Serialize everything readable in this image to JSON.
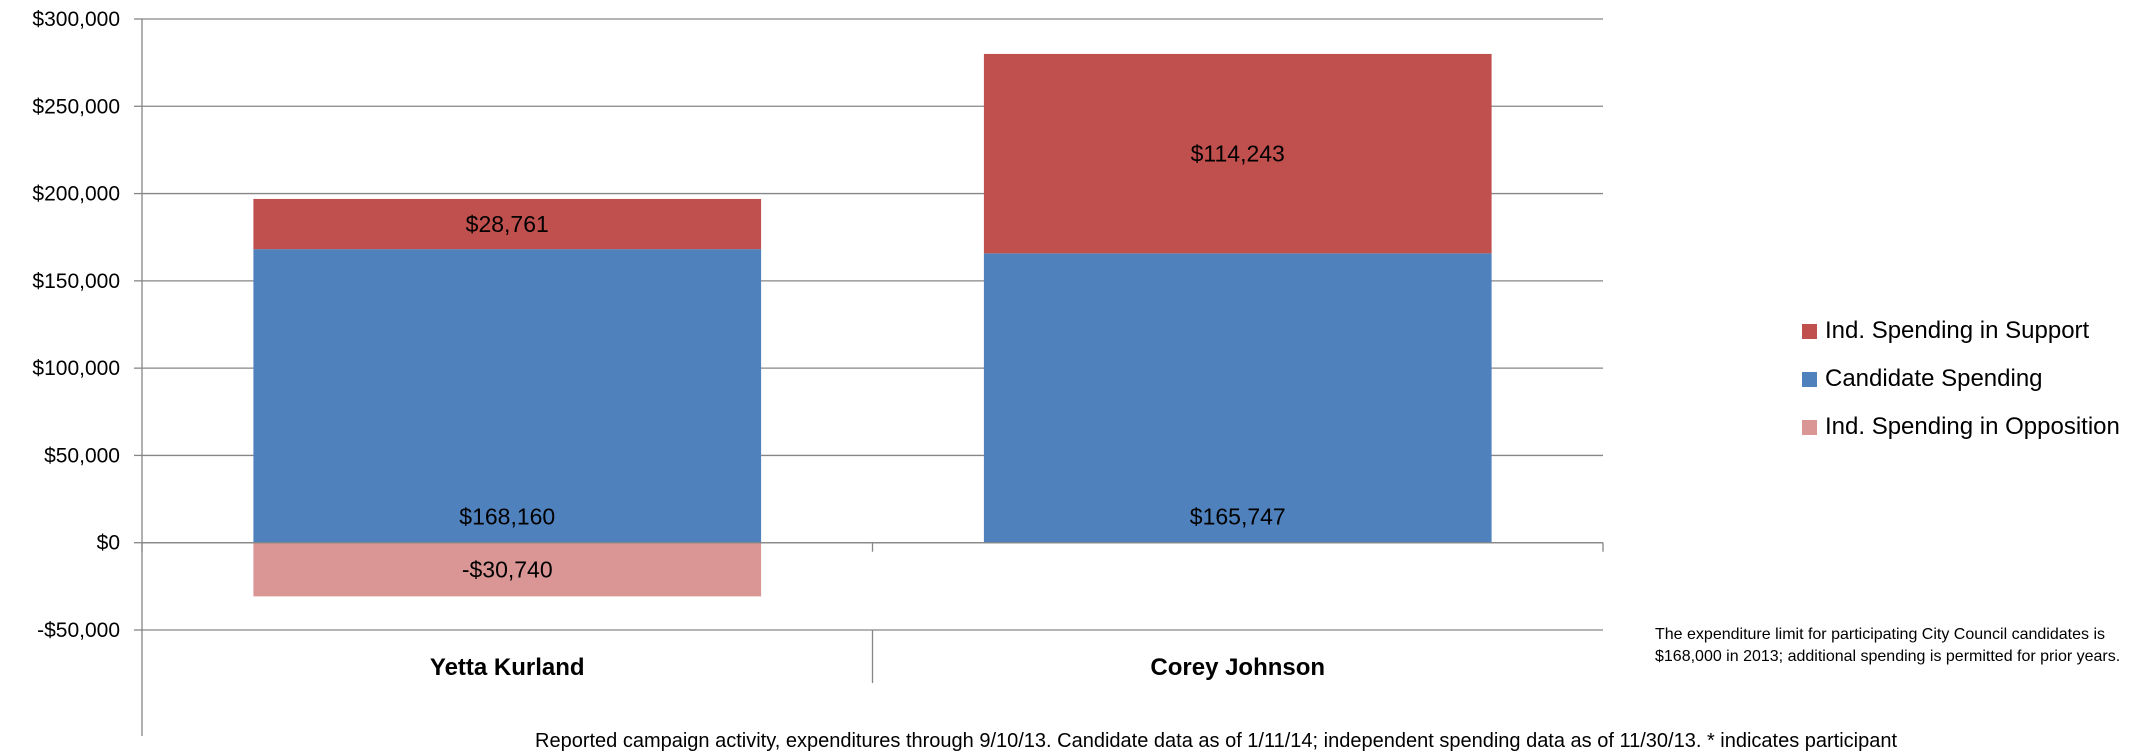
{
  "chart_data": {
    "type": "bar",
    "stacked": true,
    "categories": [
      "Yetta Kurland",
      "Corey Johnson"
    ],
    "series": [
      {
        "name": "Candidate Spending",
        "values": [
          168160,
          165747
        ],
        "labels": [
          "$168,160",
          "$165,747"
        ],
        "color": "#4F81BD"
      },
      {
        "name": "Ind. Spending in Support",
        "values": [
          28761,
          114243
        ],
        "labels": [
          "$28,761",
          "$114,243"
        ],
        "color": "#C0504D"
      },
      {
        "name": "Ind. Spending in Opposition",
        "values": [
          -30740,
          0
        ],
        "labels": [
          "-$30,740",
          ""
        ],
        "color": "#D99694"
      }
    ],
    "ylim": [
      -50000,
      300000
    ],
    "yticks": [
      {
        "value": 300000,
        "label": "$300,000"
      },
      {
        "value": 250000,
        "label": "$250,000"
      },
      {
        "value": 200000,
        "label": "$200,000"
      },
      {
        "value": 150000,
        "label": "$150,000"
      },
      {
        "value": 100000,
        "label": "$100,000"
      },
      {
        "value": 50000,
        "label": "$50,000"
      },
      {
        "value": 0,
        "label": "$0"
      },
      {
        "value": -50000,
        "label": "-$50,000"
      }
    ],
    "grid": true,
    "legend": {
      "position": "right",
      "items": [
        {
          "label": "Ind. Spending in Support",
          "color": "#C0504D"
        },
        {
          "label": "Candidate Spending",
          "color": "#4F81BD"
        },
        {
          "label": "Ind. Spending in Opposition",
          "color": "#D99694"
        }
      ]
    },
    "note": "The expenditure limit for participating City Council candidates is $168,000 in 2013; additional spending is permitted for prior years.",
    "footer": "Reported campaign activity, expenditures through 9/10/13. Candidate data as of 1/11/14; independent spending data as of 11/30/13. * indicates participant"
  }
}
